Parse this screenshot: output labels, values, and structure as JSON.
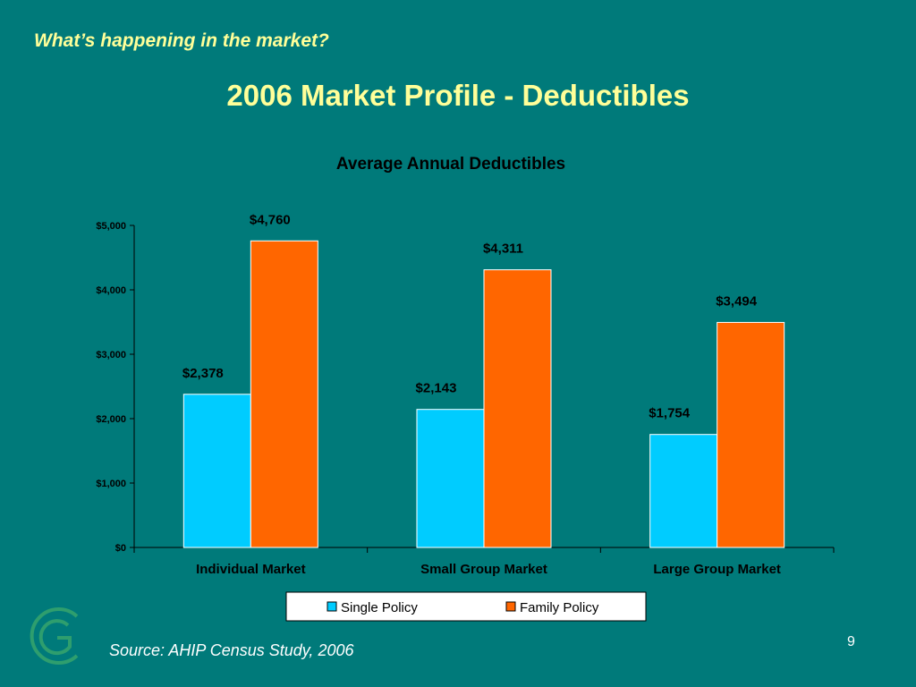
{
  "header": {
    "subtitle": "What’s happening in the market?",
    "title": "2006 Market Profile - Deductibles"
  },
  "footer": {
    "source": "Source: AHIP Census Study, 2006",
    "page_number": "9"
  },
  "colors": {
    "background": "#007A7A",
    "title": "#FFFF99",
    "single_policy": "#00CCFF",
    "family_policy": "#FF6600",
    "logo": "#2E9E6E"
  },
  "logo": {
    "icon": "g-logo-icon"
  },
  "chart_data": {
    "type": "bar",
    "title": "Average Annual Deductibles",
    "categories": [
      "Individual Market",
      "Small Group Market",
      "Large Group Market"
    ],
    "series": [
      {
        "name": "Single Policy",
        "values": [
          2378,
          2143,
          1754
        ],
        "labels": [
          "$2,378",
          "$2,143",
          "$1,754"
        ]
      },
      {
        "name": "Family Policy",
        "values": [
          4760,
          4311,
          3494
        ],
        "labels": [
          "$4,760",
          "$4,311",
          "$3,494"
        ]
      }
    ],
    "ylim": [
      0,
      5000
    ],
    "yticks": [
      0,
      1000,
      2000,
      3000,
      4000,
      5000
    ],
    "ytick_labels": [
      "$0",
      "$1,000",
      "$2,000",
      "$3,000",
      "$4,000",
      "$5,000"
    ],
    "grid": false,
    "legend_position": "bottom",
    "xlabel": "",
    "ylabel": ""
  }
}
